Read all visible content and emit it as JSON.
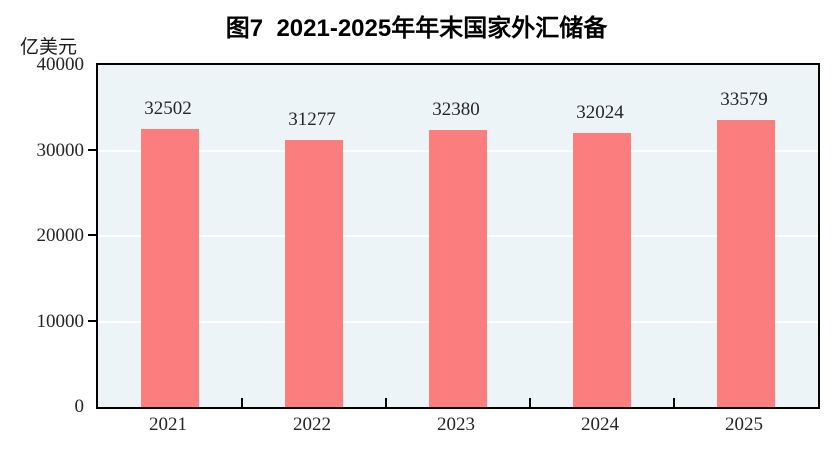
{
  "figure": {
    "title": "图7  2021-2025年年末国家外汇储备",
    "y_unit_label": "亿美元"
  },
  "chart_data": {
    "type": "bar",
    "title": "图7  2021-2025年年末国家外汇储备",
    "xlabel": "",
    "ylabel": "亿美元",
    "categories": [
      "2021",
      "2022",
      "2023",
      "2024",
      "2025"
    ],
    "values": [
      32502,
      31277,
      32380,
      32024,
      33579
    ],
    "ylim": [
      0,
      40000
    ],
    "yticks": [
      0,
      10000,
      20000,
      30000,
      40000
    ],
    "grid": true,
    "legend_position": "none",
    "colors": {
      "bar": "#FC7D7D",
      "plot_background": "#EDF4F7",
      "gridline": "#FFFFFF",
      "axis": "#000000",
      "text": "#262626"
    }
  }
}
